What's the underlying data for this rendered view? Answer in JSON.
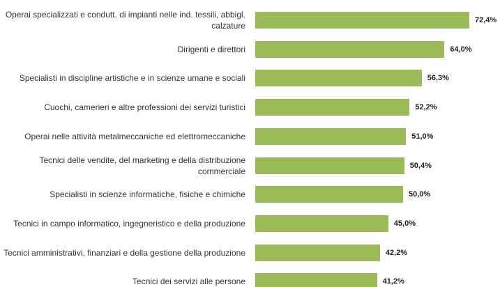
{
  "chart_data": {
    "type": "bar",
    "orientation": "horizontal",
    "color": "#9bbb59",
    "categories": [
      "Operai specializzati e condutt. di impianti nelle ind. tessili, abbigl. calzature",
      "Dirigenti e direttori",
      "Specialisti in discipline artistiche e in scienze umane e sociali",
      "Cuochi, camerieri e altre professioni dei servizi turistici",
      "Operai nelle attività metalmeccaniche ed elettromeccaniche",
      "Tecnici delle vendite, del marketing e della distribuzione commerciale",
      "Specialisti in scienze informatiche, fisiche e chimiche",
      "Tecnici in campo informatico, ingegneristico e della produzione",
      "Tecnici amministrativi, finanziari e della gestione della produzione",
      "Tecnici dei servizi alle persone"
    ],
    "values": [
      72.4,
      64.0,
      56.3,
      52.2,
      51.0,
      50.4,
      50.0,
      45.0,
      42.2,
      41.2
    ],
    "value_labels": [
      "72,4%",
      "64,0%",
      "56,3%",
      "52,2%",
      "51,0%",
      "50,4%",
      "50,0%",
      "45,0%",
      "42,2%",
      "41,2%"
    ]
  }
}
